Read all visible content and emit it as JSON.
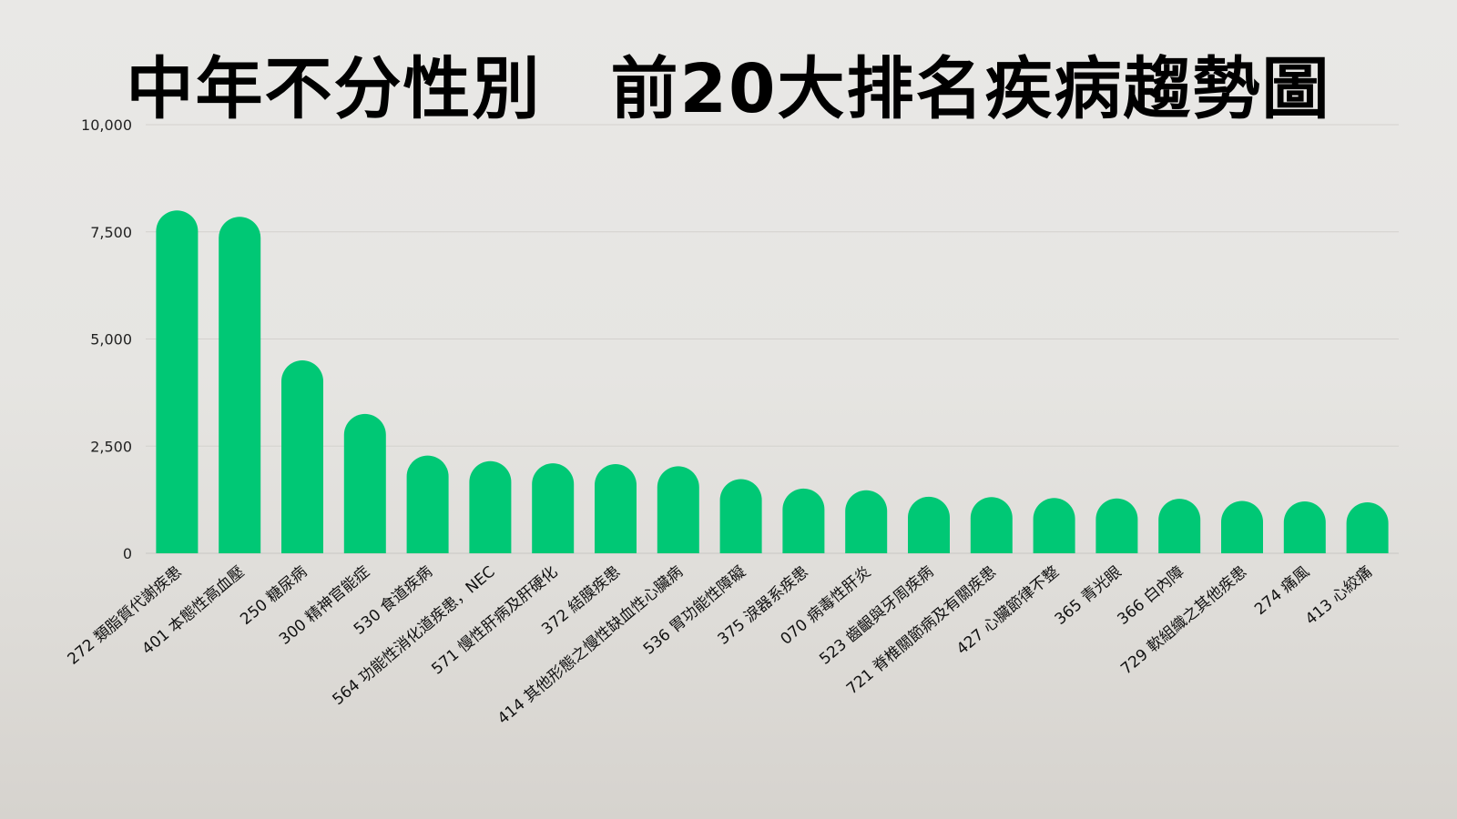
{
  "chart_data": {
    "type": "bar",
    "title": "中年不分性別　前20大排名疾病趨勢圖",
    "ylim": [
      0,
      10000
    ],
    "yticks": [
      "0",
      "2,500",
      "5,000",
      "7,500",
      "10,000"
    ],
    "grid": true,
    "bar_color": "#00c875",
    "categories": [
      "272 類脂質代謝疾患",
      "401 本態性高血壓",
      "250 糖尿病",
      "300 精神官能症",
      "530 食道疾病",
      "564 功能性消化道疾患，NEC",
      "571 慢性肝病及肝硬化",
      "372 結膜疾患",
      "414 其他形態之慢性缺血性心臟病",
      "536 胃功能性障礙",
      "375 淚器系疾患",
      "070 病毒性肝炎",
      "523 齒齦與牙周疾病",
      "721 脊椎關節病及有關疾患",
      "427 心臟節律不整",
      "365 青光眼",
      "366 白內障",
      "729 軟組織之其他疾患",
      "274 痛風",
      "413 心絞痛"
    ],
    "values": [
      8000,
      7850,
      4500,
      3250,
      2280,
      2150,
      2100,
      2080,
      2030,
      1730,
      1510,
      1470,
      1320,
      1310,
      1290,
      1280,
      1270,
      1220,
      1210,
      1190
    ]
  }
}
